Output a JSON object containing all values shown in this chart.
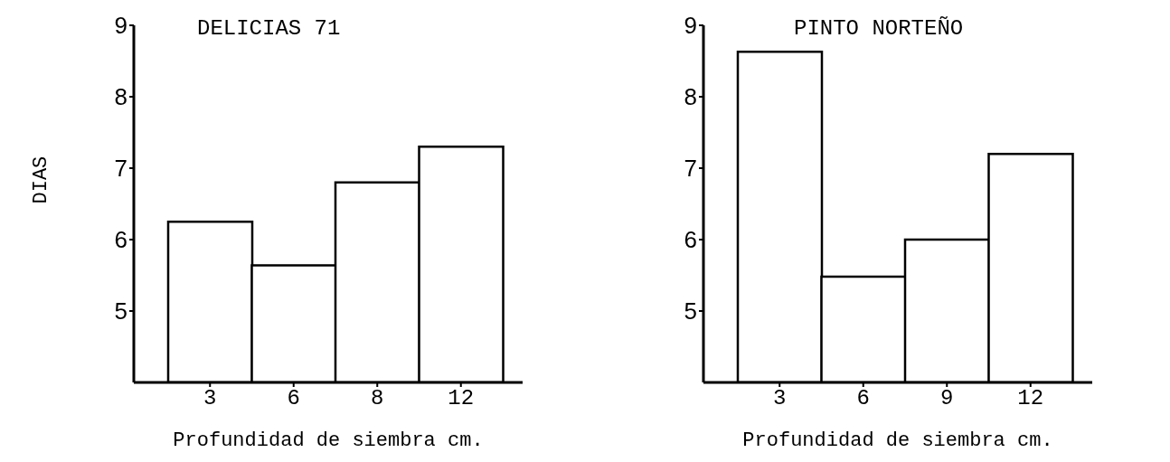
{
  "chart_data": [
    {
      "type": "bar",
      "title": "DELICIAS 71",
      "xlabel": "Profundidad de siembra cm.",
      "ylabel": "DIAS",
      "categories": [
        "3",
        "6",
        "8",
        "12"
      ],
      "values": [
        6.25,
        5.64,
        6.8,
        7.3
      ],
      "color": "#ffffff",
      "ylim": [
        4,
        9
      ],
      "yticks": [
        5,
        6,
        7,
        8,
        9
      ]
    },
    {
      "type": "bar",
      "title": "PINTO NORTEÑO",
      "xlabel": "Profundidad de siembra cm.",
      "categories": [
        "3",
        "6",
        "9",
        "12"
      ],
      "values": [
        8.63,
        5.48,
        6.0,
        7.2
      ],
      "color": "#ffffff",
      "ylim": [
        4,
        9
      ],
      "yticks": [
        5,
        6,
        7,
        8,
        9
      ]
    }
  ]
}
